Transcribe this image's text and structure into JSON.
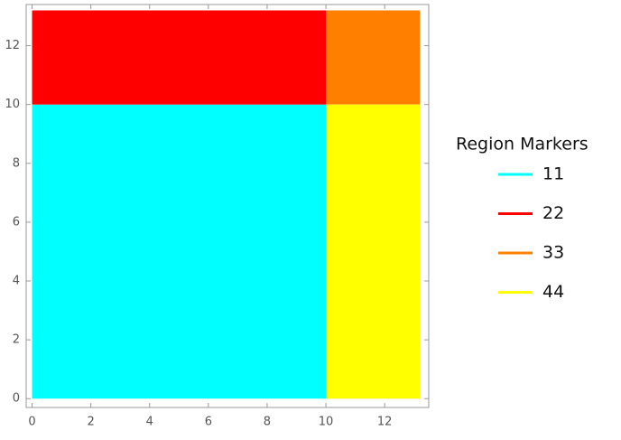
{
  "chart_data": {
    "type": "region",
    "legend_title": "Region Markers",
    "series": [
      {
        "name": "11",
        "color": "#00ffff",
        "x": [
          0,
          10
        ],
        "y": [
          0,
          10
        ]
      },
      {
        "name": "22",
        "color": "#ff0000",
        "x": [
          0,
          10
        ],
        "y": [
          10,
          13.2
        ]
      },
      {
        "name": "33",
        "color": "#ff8000",
        "x": [
          10,
          13.2
        ],
        "y": [
          10,
          13.2
        ]
      },
      {
        "name": "44",
        "color": "#ffff00",
        "x": [
          10,
          13.2
        ],
        "y": [
          0,
          10
        ]
      }
    ],
    "xlim": [
      -0.2,
      13.5
    ],
    "ylim": [
      -0.3,
      13.4
    ],
    "xticks": [
      0,
      2,
      4,
      6,
      8,
      10,
      12
    ],
    "yticks": [
      0,
      2,
      4,
      6,
      8,
      10,
      12
    ],
    "legend_position": "right"
  }
}
